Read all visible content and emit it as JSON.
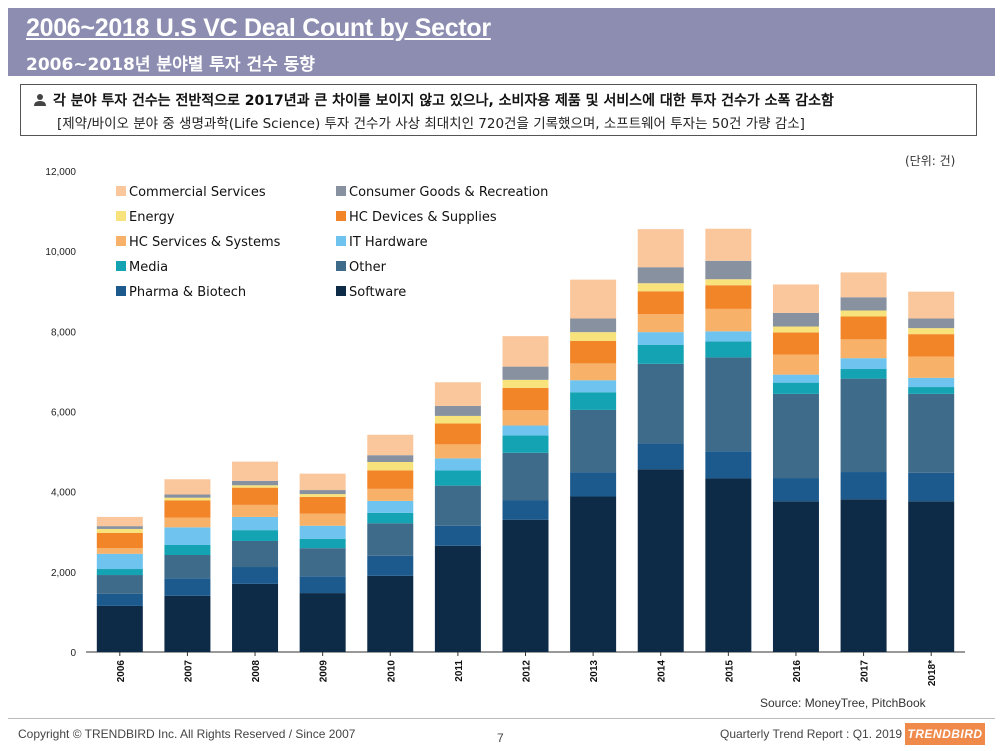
{
  "header": {
    "title_en": "2006~2018 U.S VC Deal Count by Sector",
    "title_kr": "2006~2018년 분야별 투자 건수 동향"
  },
  "summary": {
    "line1": "각 분야 투자 건수는 전반적으로 2017년과 큰 차이를 보이지 않고 있으나, 소비자용 제품 및 서비스에 대한 투자 건수가 소폭 감소함",
    "line2": "[제약/바이오 분야 중 생명과학(Life Science) 투자 건수가 사상 최대치인 720건을 기록했으며, 소프트웨어 투자는 50건 가량 감소]"
  },
  "unit": "(단위: 건)",
  "source": "Source: MoneyTree, PitchBook",
  "footer": {
    "copyright": "Copyright © TRENDBIRD Inc.  All Rights Reserved / Since 2007",
    "page": "7",
    "report": "Quarterly Trend Report :  Q1. 2019",
    "logo": "TRENDBIRD"
  },
  "chart_data": {
    "type": "bar",
    "stacked": true,
    "categories": [
      "2006",
      "2007",
      "2008",
      "2009",
      "2010",
      "2011",
      "2012",
      "2013",
      "2014",
      "2015",
      "2016",
      "2017",
      "2018*"
    ],
    "ylim": [
      0,
      12000
    ],
    "yticks": [
      0,
      2000,
      4000,
      6000,
      8000,
      10000,
      12000
    ],
    "ytick_labels": [
      "0",
      "2,000",
      "4,000",
      "6,000",
      "8,000",
      "10,000",
      "12,000"
    ],
    "legend_position": "top-left",
    "grid": false,
    "series": [
      {
        "name": "Software",
        "color": "#0d2a47",
        "values": [
          1150,
          1400,
          1700,
          1470,
          1900,
          2650,
          3300,
          3880,
          4560,
          4330,
          3760,
          3810,
          3760
        ]
      },
      {
        "name": "Pharma & Biotech",
        "color": "#1c5a8e",
        "values": [
          300,
          440,
          420,
          420,
          500,
          500,
          480,
          600,
          640,
          680,
          580,
          680,
          710
        ]
      },
      {
        "name": "Other",
        "color": "#3f6b8a",
        "values": [
          470,
          580,
          650,
          700,
          810,
          1000,
          1190,
          1560,
          1990,
          2340,
          2100,
          2330,
          1970
        ]
      },
      {
        "name": "Media",
        "color": "#14a3b2",
        "values": [
          150,
          250,
          270,
          230,
          260,
          380,
          430,
          440,
          470,
          400,
          280,
          240,
          170
        ]
      },
      {
        "name": "IT Hardware",
        "color": "#6ec4ee",
        "values": [
          380,
          440,
          330,
          330,
          300,
          300,
          250,
          300,
          320,
          250,
          200,
          270,
          230
        ]
      },
      {
        "name": "HC Services & Systems",
        "color": "#f8b169",
        "values": [
          140,
          240,
          300,
          300,
          300,
          350,
          380,
          420,
          450,
          560,
          500,
          470,
          530
        ]
      },
      {
        "name": "HC Devices & Supplies",
        "color": "#f28528",
        "values": [
          380,
          430,
          430,
          420,
          460,
          520,
          560,
          560,
          570,
          590,
          550,
          570,
          560
        ]
      },
      {
        "name": "Energy",
        "color": "#f8e27c",
        "values": [
          100,
          70,
          60,
          70,
          210,
          190,
          200,
          220,
          200,
          150,
          150,
          150,
          150
        ]
      },
      {
        "name": "Consumer Goods & Recreation",
        "color": "#8791a0",
        "values": [
          70,
          80,
          110,
          100,
          170,
          250,
          330,
          340,
          400,
          460,
          340,
          330,
          240
        ]
      },
      {
        "name": "Commercial Services",
        "color": "#fac79c",
        "values": [
          230,
          380,
          480,
          410,
          510,
          590,
          760,
          970,
          950,
          800,
          710,
          620,
          670
        ]
      }
    ]
  }
}
